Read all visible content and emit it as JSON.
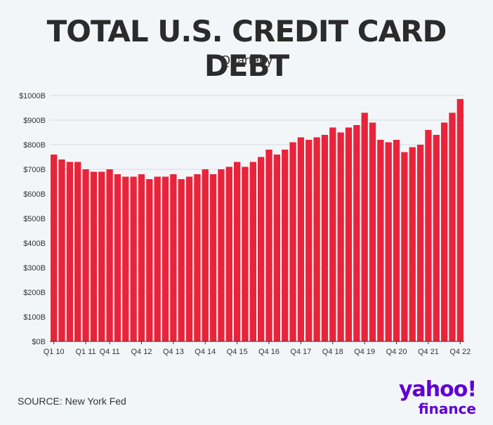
{
  "header": {
    "title": "TOTAL U.S. CREDIT CARD DEBT",
    "subtitle": "Quarterly"
  },
  "footer": {
    "source": "SOURCE: New York Fed"
  },
  "logo": {
    "word": "yahoo!",
    "sub": "finance",
    "color": "#6001d2"
  },
  "chart_data": {
    "type": "bar",
    "title": "TOTAL U.S. CREDIT CARD DEBT",
    "subtitle": "Quarterly",
    "xlabel": "",
    "ylabel": "",
    "ylim": [
      0,
      1000
    ],
    "yticks": [
      "$0B",
      "$100B",
      "$200B",
      "$300B",
      "$400B",
      "$500B",
      "$600B",
      "$700B",
      "$800B",
      "$900B",
      "$1000B"
    ],
    "grid": true,
    "bar_color": "#e8243b",
    "categories": [
      "Q1 10",
      "Q2 10",
      "Q3 10",
      "Q4 10",
      "Q1 11",
      "Q2 11",
      "Q3 11",
      "Q4 11",
      "Q1 12",
      "Q2 12",
      "Q3 12",
      "Q4 12",
      "Q1 13",
      "Q2 13",
      "Q3 13",
      "Q4 13",
      "Q1 14",
      "Q2 14",
      "Q3 14",
      "Q4 14",
      "Q1 15",
      "Q2 15",
      "Q3 15",
      "Q4 15",
      "Q1 16",
      "Q2 16",
      "Q3 16",
      "Q4 16",
      "Q1 17",
      "Q2 17",
      "Q3 17",
      "Q4 17",
      "Q1 18",
      "Q2 18",
      "Q3 18",
      "Q4 18",
      "Q1 19",
      "Q2 19",
      "Q3 19",
      "Q4 19",
      "Q1 20",
      "Q2 20",
      "Q3 20",
      "Q4 20",
      "Q1 21",
      "Q2 21",
      "Q3 21",
      "Q4 21",
      "Q1 22",
      "Q2 22",
      "Q3 22",
      "Q4 22"
    ],
    "shown_tick_labels": [
      "Q1 10",
      "Q1 11",
      "Q4 11",
      "Q4 12",
      "Q4 13",
      "Q4 14",
      "Q4 15",
      "Q4 16",
      "Q4 17",
      "Q4 18",
      "Q4 19",
      "Q4 20",
      "Q4 21",
      "Q4 22"
    ],
    "values": [
      760,
      740,
      730,
      730,
      700,
      690,
      690,
      700,
      680,
      670,
      670,
      680,
      660,
      670,
      670,
      680,
      660,
      670,
      680,
      700,
      680,
      700,
      710,
      730,
      710,
      730,
      750,
      780,
      760,
      780,
      810,
      830,
      820,
      830,
      840,
      870,
      850,
      870,
      880,
      930,
      890,
      820,
      810,
      820,
      770,
      790,
      800,
      860,
      840,
      890,
      930,
      986
    ]
  }
}
